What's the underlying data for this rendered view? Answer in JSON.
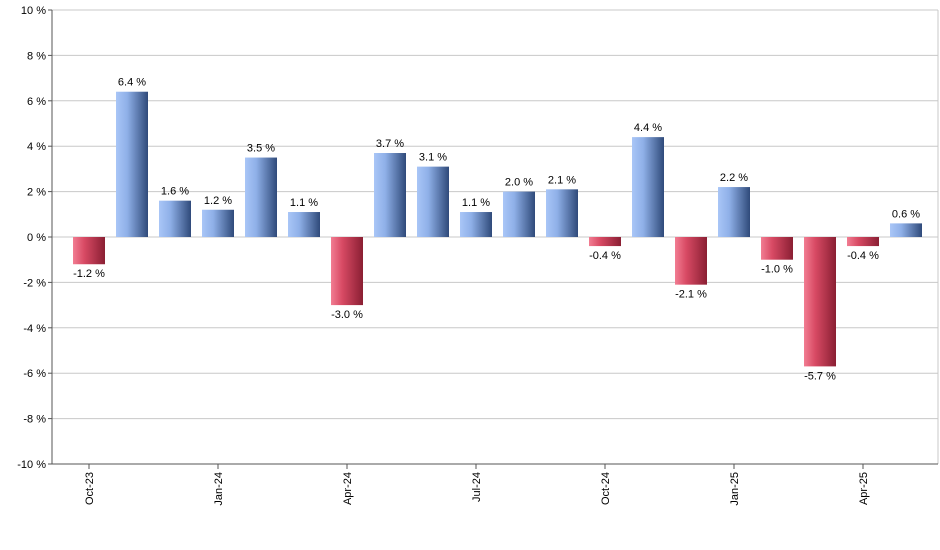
{
  "chart_data": {
    "type": "bar",
    "categories": [
      "Oct-23",
      "Nov-23",
      "Dec-23",
      "Jan-24",
      "Feb-24",
      "Mar-24",
      "Apr-24",
      "May-24",
      "Jun-24",
      "Jul-24",
      "Aug-24",
      "Sep-24",
      "Oct-24",
      "Nov-24",
      "Dec-24",
      "Jan-25",
      "Feb-25",
      "Mar-25",
      "Apr-25",
      "May-25"
    ],
    "values": [
      -1.2,
      6.4,
      1.6,
      1.2,
      3.5,
      1.1,
      -3.0,
      3.7,
      3.1,
      1.1,
      2.0,
      2.1,
      -0.4,
      4.4,
      -2.1,
      2.2,
      -1.0,
      -5.7,
      -0.4,
      0.6
    ],
    "data_labels": [
      "-1.2 %",
      "6.4 %",
      "1.6 %",
      "1.2 %",
      "3.5 %",
      "1.1 %",
      "-3.0 %",
      "3.7 %",
      "3.1 %",
      "1.1 %",
      "2.0 %",
      "2.1 %",
      "-0.4 %",
      "4.4 %",
      "-2.1 %",
      "2.2 %",
      "-1.0 %",
      "-5.7 %",
      "-0.4 %",
      "0.6 %"
    ],
    "x_tick_labels": [
      {
        "index": 0,
        "label": "Oct-23"
      },
      {
        "index": 3,
        "label": "Jan-24"
      },
      {
        "index": 6,
        "label": "Apr-24"
      },
      {
        "index": 9,
        "label": "Jul-24"
      },
      {
        "index": 12,
        "label": "Oct-24"
      },
      {
        "index": 15,
        "label": "Jan-25"
      },
      {
        "index": 18,
        "label": "Apr-25"
      }
    ],
    "y_ticks": [
      10,
      8,
      6,
      4,
      2,
      0,
      -2,
      -4,
      -6,
      -8,
      -10
    ],
    "y_tick_labels": [
      "10 %",
      "8 %",
      "6 %",
      "4 %",
      "2 %",
      "0 %",
      "-2 %",
      "-4 %",
      "-6 %",
      "-8 %",
      "-10 %"
    ],
    "ylim": [
      -10,
      10
    ],
    "grid": true,
    "title": "",
    "xlabel": "",
    "ylabel": "",
    "colors": {
      "positive_light": "#a9c6f7",
      "positive_dark": "#2f4a7a",
      "negative_light": "#f27d92",
      "negative_dark": "#8a1f33",
      "grid": "#c8c8c8",
      "axis": "#555555"
    }
  }
}
